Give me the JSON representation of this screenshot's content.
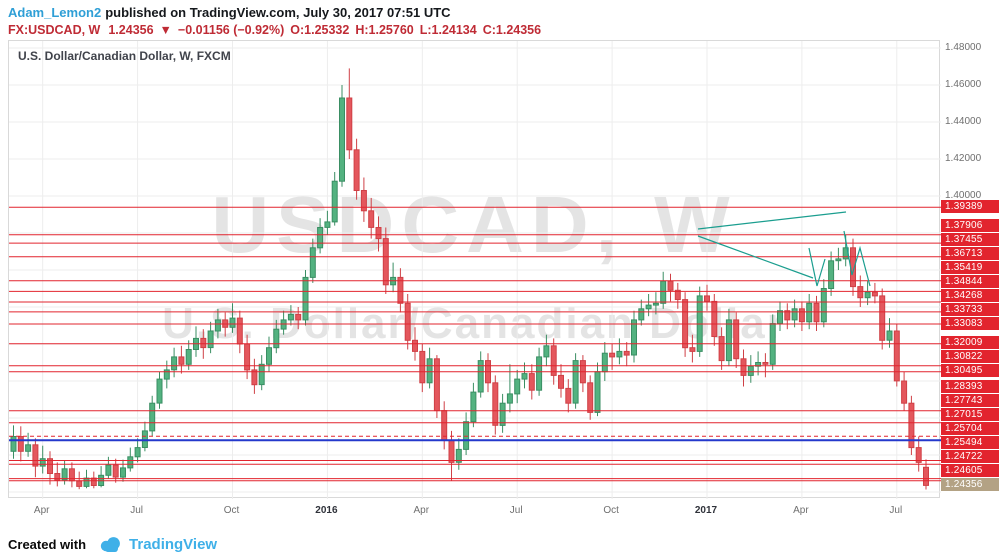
{
  "header": {
    "author": "Adam_Lemon2",
    "published": "published on TradingView.com, July 30, 2017 07:51 UTC",
    "symbol": "FX:USDCAD, W",
    "last_price": "1.24356",
    "direction_icon": "▼",
    "change": "−0.01156 (−0.92%)",
    "ohlc": [
      "O:1.25332",
      "H:1.25760",
      "L:1.24134",
      "C:1.24356"
    ]
  },
  "chart": {
    "title": "U.S. Dollar/Canadian Dollar, W, FXCM",
    "watermark_line1": "USDCAD, W",
    "watermark_line2": "U.S. Dollar/Canadian Dollar"
  },
  "footer": {
    "created_with": "Created with",
    "brand": "TradingView"
  },
  "colors": {
    "up": "#53b280",
    "up_border": "#3a8e63",
    "down": "#e4575d",
    "down_border": "#cf4046",
    "level": "#e2242e",
    "blue_line": "#2438cc",
    "teal": "#1b9e8f",
    "grid": "#ededed",
    "last_badge": "#b3a284",
    "header_red": "#bf2b35",
    "author_blue": "#2f9fd6",
    "brand_blue": "#3fb0e8"
  },
  "chart_data": {
    "type": "candlestick",
    "symbol": "USDCAD",
    "interval": "W",
    "title": "U.S. Dollar/Canadian Dollar, W, FXCM",
    "y_range": [
      1.2362,
      1.4838
    ],
    "grid_prices": [
      1.24,
      1.26,
      1.28,
      1.3,
      1.32,
      1.34,
      1.36,
      1.38,
      1.4,
      1.42,
      1.44,
      1.46,
      1.48
    ],
    "y_ticks": [
      {
        "price": 1.48,
        "label": "1.48000"
      },
      {
        "price": 1.46,
        "label": "1.46000"
      },
      {
        "price": 1.44,
        "label": "1.44000"
      },
      {
        "price": 1.42,
        "label": "1.42000"
      },
      {
        "price": 1.4,
        "label": "1.40000"
      }
    ],
    "x_ticks": [
      {
        "week": 4,
        "label": "Apr"
      },
      {
        "week": 17,
        "label": "Jul"
      },
      {
        "week": 30,
        "label": "Oct"
      },
      {
        "week": 43,
        "label": "2016",
        "year": true
      },
      {
        "week": 56,
        "label": "Apr"
      },
      {
        "week": 69,
        "label": "Jul"
      },
      {
        "week": 82,
        "label": "Oct"
      },
      {
        "week": 95,
        "label": "2017",
        "year": true
      },
      {
        "week": 108,
        "label": "Apr"
      },
      {
        "week": 121,
        "label": "Jul"
      }
    ],
    "levels": [
      {
        "price": 1.39389
      },
      {
        "price": 1.37906
      },
      {
        "price": 1.37455
      },
      {
        "price": 1.36713
      },
      {
        "price": 1.35419
      },
      {
        "price": 1.34844
      },
      {
        "price": 1.34268
      },
      {
        "price": 1.33733
      },
      {
        "price": 1.33083
      },
      {
        "price": 1.32009
      },
      {
        "price": 1.30822
      },
      {
        "price": 1.30495
      },
      {
        "price": 1.28393
      },
      {
        "price": 1.27743
      },
      {
        "price": 1.27015,
        "dash": true
      },
      {
        "price": 1.25704
      },
      {
        "price": 1.25494
      },
      {
        "price": 1.24722
      },
      {
        "price": 1.24605
      }
    ],
    "blue_line_price": 1.268,
    "last_price": 1.24356,
    "candles": [
      [
        1.262,
        1.276,
        1.258,
        1.27
      ],
      [
        1.27,
        1.2755,
        1.2565,
        1.262
      ],
      [
        1.262,
        1.272,
        1.259,
        1.2655
      ],
      [
        1.2655,
        1.269,
        1.248,
        1.254
      ],
      [
        1.254,
        1.265,
        1.25,
        1.258
      ],
      [
        1.258,
        1.262,
        1.244,
        1.25
      ],
      [
        1.25,
        1.256,
        1.243,
        1.2465
      ],
      [
        1.2465,
        1.257,
        1.244,
        1.2525
      ],
      [
        1.2525,
        1.256,
        1.2425,
        1.246
      ],
      [
        1.246,
        1.251,
        1.2415,
        1.243
      ],
      [
        1.243,
        1.252,
        1.242,
        1.2475
      ],
      [
        1.2475,
        1.251,
        1.242,
        1.2435
      ],
      [
        1.2435,
        1.254,
        1.2425,
        1.249
      ],
      [
        1.249,
        1.259,
        1.247,
        1.2545
      ],
      [
        1.2545,
        1.258,
        1.245,
        1.248
      ],
      [
        1.248,
        1.2575,
        1.2455,
        1.253
      ],
      [
        1.253,
        1.264,
        1.251,
        1.259
      ],
      [
        1.259,
        1.269,
        1.256,
        1.264
      ],
      [
        1.264,
        1.278,
        1.262,
        1.273
      ],
      [
        1.273,
        1.292,
        1.27,
        1.288
      ],
      [
        1.288,
        1.305,
        1.285,
        1.301
      ],
      [
        1.301,
        1.311,
        1.296,
        1.306
      ],
      [
        1.306,
        1.318,
        1.302,
        1.313
      ],
      [
        1.313,
        1.319,
        1.304,
        1.309
      ],
      [
        1.309,
        1.322,
        1.306,
        1.317
      ],
      [
        1.317,
        1.3295,
        1.313,
        1.323
      ],
      [
        1.323,
        1.328,
        1.312,
        1.318
      ],
      [
        1.318,
        1.332,
        1.315,
        1.327
      ],
      [
        1.327,
        1.339,
        1.323,
        1.333
      ],
      [
        1.333,
        1.337,
        1.324,
        1.329
      ],
      [
        1.329,
        1.342,
        1.326,
        1.334
      ],
      [
        1.334,
        1.338,
        1.315,
        1.32
      ],
      [
        1.32,
        1.325,
        1.301,
        1.306
      ],
      [
        1.306,
        1.312,
        1.293,
        1.298
      ],
      [
        1.298,
        1.314,
        1.295,
        1.309
      ],
      [
        1.309,
        1.324,
        1.305,
        1.318
      ],
      [
        1.318,
        1.333,
        1.315,
        1.328
      ],
      [
        1.328,
        1.338,
        1.325,
        1.333
      ],
      [
        1.333,
        1.341,
        1.33,
        1.336
      ],
      [
        1.336,
        1.34,
        1.328,
        1.333
      ],
      [
        1.333,
        1.36,
        1.33,
        1.356
      ],
      [
        1.356,
        1.377,
        1.353,
        1.372
      ],
      [
        1.372,
        1.388,
        1.369,
        1.383
      ],
      [
        1.383,
        1.392,
        1.379,
        1.386
      ],
      [
        1.386,
        1.413,
        1.384,
        1.408
      ],
      [
        1.408,
        1.46,
        1.405,
        1.453
      ],
      [
        1.453,
        1.469,
        1.42,
        1.425
      ],
      [
        1.425,
        1.431,
        1.398,
        1.403
      ],
      [
        1.403,
        1.41,
        1.386,
        1.392
      ],
      [
        1.392,
        1.399,
        1.377,
        1.383
      ],
      [
        1.383,
        1.389,
        1.37,
        1.377
      ],
      [
        1.377,
        1.383,
        1.347,
        1.352
      ],
      [
        1.352,
        1.364,
        1.348,
        1.356
      ],
      [
        1.356,
        1.361,
        1.337,
        1.342
      ],
      [
        1.342,
        1.347,
        1.317,
        1.322
      ],
      [
        1.322,
        1.329,
        1.311,
        1.316
      ],
      [
        1.316,
        1.32,
        1.294,
        1.299
      ],
      [
        1.299,
        1.318,
        1.296,
        1.312
      ],
      [
        1.312,
        1.314,
        1.28,
        1.284
      ],
      [
        1.284,
        1.289,
        1.263,
        1.268
      ],
      [
        1.268,
        1.273,
        1.246,
        1.256
      ],
      [
        1.256,
        1.269,
        1.252,
        1.263
      ],
      [
        1.263,
        1.283,
        1.26,
        1.278
      ],
      [
        1.278,
        1.299,
        1.275,
        1.294
      ],
      [
        1.294,
        1.316,
        1.291,
        1.311
      ],
      [
        1.311,
        1.315,
        1.294,
        1.299
      ],
      [
        1.299,
        1.303,
        1.271,
        1.276
      ],
      [
        1.276,
        1.293,
        1.272,
        1.288
      ],
      [
        1.288,
        1.309,
        1.283,
        1.293
      ],
      [
        1.293,
        1.306,
        1.288,
        1.301
      ],
      [
        1.301,
        1.31,
        1.296,
        1.304
      ],
      [
        1.304,
        1.309,
        1.29,
        1.295
      ],
      [
        1.295,
        1.318,
        1.292,
        1.313
      ],
      [
        1.313,
        1.325,
        1.308,
        1.319
      ],
      [
        1.319,
        1.323,
        1.298,
        1.303
      ],
      [
        1.303,
        1.309,
        1.291,
        1.296
      ],
      [
        1.296,
        1.301,
        1.283,
        1.288
      ],
      [
        1.288,
        1.315,
        1.285,
        1.311
      ],
      [
        1.311,
        1.314,
        1.294,
        1.299
      ],
      [
        1.299,
        1.303,
        1.279,
        1.283
      ],
      [
        1.283,
        1.31,
        1.281,
        1.305
      ],
      [
        1.305,
        1.321,
        1.3,
        1.315
      ],
      [
        1.315,
        1.32,
        1.306,
        1.313
      ],
      [
        1.313,
        1.323,
        1.309,
        1.316
      ],
      [
        1.316,
        1.321,
        1.308,
        1.314
      ],
      [
        1.314,
        1.338,
        1.31,
        1.333
      ],
      [
        1.333,
        1.344,
        1.33,
        1.339
      ],
      [
        1.339,
        1.347,
        1.335,
        1.341
      ],
      [
        1.341,
        1.348,
        1.336,
        1.342
      ],
      [
        1.342,
        1.359,
        1.339,
        1.354
      ],
      [
        1.354,
        1.358,
        1.343,
        1.349
      ],
      [
        1.349,
        1.353,
        1.339,
        1.344
      ],
      [
        1.344,
        1.348,
        1.313,
        1.318
      ],
      [
        1.318,
        1.325,
        1.31,
        1.316
      ],
      [
        1.316,
        1.351,
        1.313,
        1.346
      ],
      [
        1.346,
        1.352,
        1.338,
        1.343
      ],
      [
        1.343,
        1.347,
        1.319,
        1.324
      ],
      [
        1.324,
        1.329,
        1.306,
        1.311
      ],
      [
        1.311,
        1.339,
        1.308,
        1.333
      ],
      [
        1.333,
        1.337,
        1.307,
        1.312
      ],
      [
        1.312,
        1.317,
        1.297,
        1.303
      ],
      [
        1.303,
        1.314,
        1.299,
        1.308
      ],
      [
        1.308,
        1.316,
        1.303,
        1.31
      ],
      [
        1.31,
        1.315,
        1.302,
        1.309
      ],
      [
        1.309,
        1.336,
        1.306,
        1.331
      ],
      [
        1.331,
        1.343,
        1.327,
        1.338
      ],
      [
        1.338,
        1.342,
        1.328,
        1.333
      ],
      [
        1.333,
        1.344,
        1.329,
        1.339
      ],
      [
        1.339,
        1.343,
        1.327,
        1.332
      ],
      [
        1.332,
        1.347,
        1.328,
        1.342
      ],
      [
        1.342,
        1.346,
        1.327,
        1.332
      ],
      [
        1.332,
        1.355,
        1.329,
        1.35
      ],
      [
        1.35,
        1.37,
        1.346,
        1.365
      ],
      [
        1.365,
        1.372,
        1.36,
        1.366
      ],
      [
        1.366,
        1.3791,
        1.362,
        1.372
      ],
      [
        1.372,
        1.377,
        1.346,
        1.351
      ],
      [
        1.351,
        1.357,
        1.34,
        1.345
      ],
      [
        1.345,
        1.354,
        1.341,
        1.348
      ],
      [
        1.348,
        1.353,
        1.342,
        1.346
      ],
      [
        1.346,
        1.35,
        1.317,
        1.322
      ],
      [
        1.322,
        1.334,
        1.318,
        1.327
      ],
      [
        1.327,
        1.331,
        1.297,
        1.3
      ],
      [
        1.3,
        1.305,
        1.284,
        1.288
      ],
      [
        1.288,
        1.292,
        1.26,
        1.264
      ],
      [
        1.264,
        1.27,
        1.251,
        1.256
      ],
      [
        1.25332,
        1.2576,
        1.24134,
        1.24356
      ]
    ],
    "drawings": [
      {
        "name": "teal-trendline-upper",
        "points": [
          [
            689,
            188
          ],
          [
            837,
            171
          ]
        ]
      },
      {
        "name": "teal-trendline-lower",
        "points": [
          [
            689,
            195
          ],
          [
            804,
            237
          ]
        ]
      },
      {
        "name": "teal-zigzag-1",
        "points": [
          [
            800,
            207
          ],
          [
            808,
            245
          ],
          [
            816,
            218
          ]
        ]
      },
      {
        "name": "teal-zigzag-2",
        "points": [
          [
            835,
            190
          ],
          [
            843,
            234
          ],
          [
            851,
            207
          ],
          [
            861,
            245
          ]
        ]
      }
    ]
  }
}
